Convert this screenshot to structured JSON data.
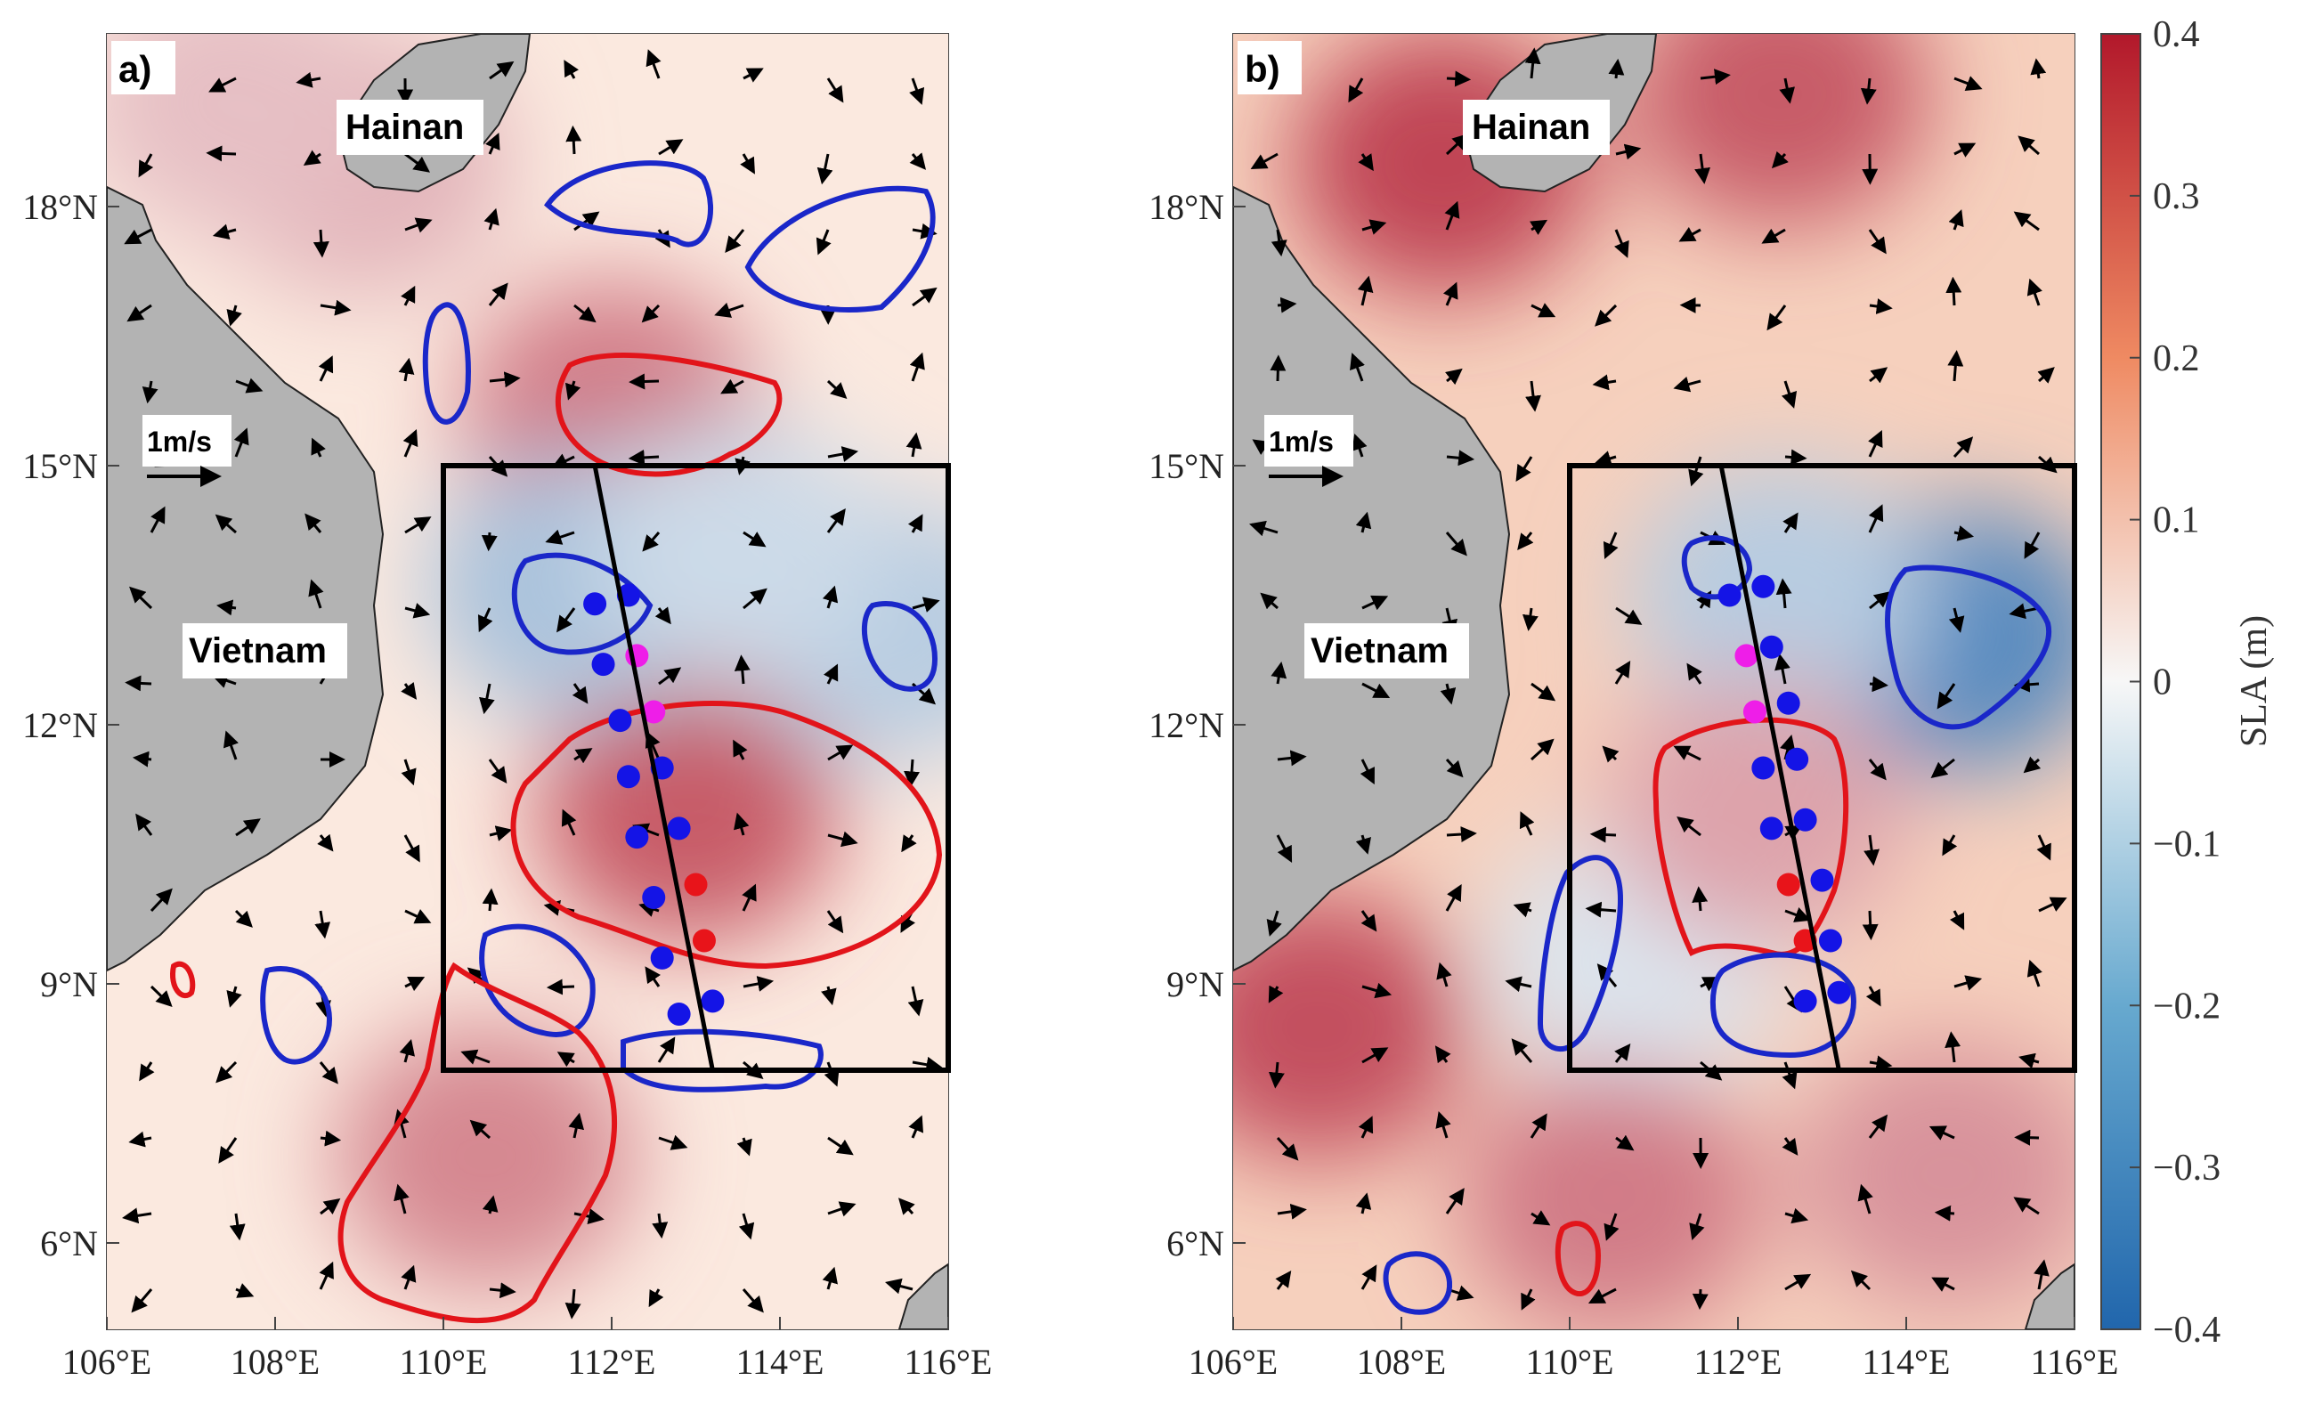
{
  "figure": {
    "colorbar": {
      "label": "SLA (m)",
      "min": -0.4,
      "max": 0.4,
      "ticks": [
        "0.4",
        "0.3",
        "0.2",
        "0.1",
        "0",
        "−0.1",
        "−0.2",
        "−0.3",
        "−0.4"
      ],
      "colors": {
        "positive": "#c0303a",
        "mid": "#f7f7f7",
        "negative": "#2b78b8"
      }
    },
    "axes": {
      "lon_ticks": [
        "106°E",
        "108°E",
        "110°E",
        "112°E",
        "114°E",
        "116°E"
      ],
      "lat_ticks": [
        "18°N",
        "15°N",
        "12°N",
        "9°N",
        "6°N"
      ],
      "lon_range": [
        106,
        116
      ],
      "lat_range": [
        5,
        20
      ]
    },
    "panels": [
      {
        "label": "a)",
        "land_labels": {
          "hainan": "Hainan",
          "vietnam": "Vietnam"
        },
        "scale_label": "1m/s",
        "study_box": {
          "lon": [
            110,
            116
          ],
          "lat": [
            8,
            15
          ]
        },
        "transect": {
          "lon": [
            111.8,
            113.2
          ],
          "lat": [
            15,
            8
          ]
        },
        "sla_features": [
          {
            "lon": 112.9,
            "lat": 11.0,
            "value": 0.28
          },
          {
            "lon": 112.0,
            "lat": 15.6,
            "value": 0.22
          },
          {
            "lon": 110.5,
            "lat": 7.0,
            "value": 0.2
          },
          {
            "lon": 111.6,
            "lat": 13.6,
            "value": -0.15
          },
          {
            "lon": 115.3,
            "lat": 13.1,
            "value": -0.12
          },
          {
            "lon": 113.5,
            "lat": 14.0,
            "value": -0.08
          },
          {
            "lon": 109.0,
            "lat": 18.5,
            "value": 0.12
          },
          {
            "lon": 107.5,
            "lat": 19.2,
            "value": 0.1
          }
        ],
        "stations": [
          {
            "lon": 111.8,
            "lat": 13.4,
            "type": "blue"
          },
          {
            "lon": 112.2,
            "lat": 13.5,
            "type": "blue"
          },
          {
            "lon": 111.9,
            "lat": 12.7,
            "type": "blue"
          },
          {
            "lon": 112.3,
            "lat": 12.8,
            "type": "magenta"
          },
          {
            "lon": 112.5,
            "lat": 12.15,
            "type": "magenta"
          },
          {
            "lon": 112.1,
            "lat": 12.05,
            "type": "blue"
          },
          {
            "lon": 112.2,
            "lat": 11.4,
            "type": "blue"
          },
          {
            "lon": 112.6,
            "lat": 11.5,
            "type": "blue"
          },
          {
            "lon": 112.3,
            "lat": 10.7,
            "type": "blue"
          },
          {
            "lon": 112.8,
            "lat": 10.8,
            "type": "blue"
          },
          {
            "lon": 112.5,
            "lat": 10.0,
            "type": "blue"
          },
          {
            "lon": 113.0,
            "lat": 10.15,
            "type": "red"
          },
          {
            "lon": 112.6,
            "lat": 9.3,
            "type": "blue"
          },
          {
            "lon": 113.1,
            "lat": 9.5,
            "type": "red"
          },
          {
            "lon": 112.8,
            "lat": 8.65,
            "type": "blue"
          },
          {
            "lon": 113.2,
            "lat": 8.8,
            "type": "blue"
          }
        ]
      },
      {
        "label": "b)",
        "land_labels": {
          "hainan": "Hainan",
          "vietnam": "Vietnam"
        },
        "scale_label": "1m/s",
        "study_box": {
          "lon": [
            110,
            116
          ],
          "lat": [
            8,
            15
          ]
        },
        "transect": {
          "lon": [
            111.8,
            113.2
          ],
          "lat": [
            15,
            8
          ]
        },
        "sla_features": [
          {
            "lon": 114.6,
            "lat": 13.0,
            "value": -0.3
          },
          {
            "lon": 112.5,
            "lat": 13.5,
            "value": -0.12
          },
          {
            "lon": 110.8,
            "lat": 9.3,
            "value": -0.05
          },
          {
            "lon": 112.2,
            "lat": 11.0,
            "value": 0.15
          },
          {
            "lon": 108.5,
            "lat": 18.5,
            "value": 0.32
          },
          {
            "lon": 107.0,
            "lat": 8.5,
            "value": 0.3
          },
          {
            "lon": 110.5,
            "lat": 6.5,
            "value": 0.22
          },
          {
            "lon": 114.5,
            "lat": 6.8,
            "value": 0.18
          },
          {
            "lon": 112.5,
            "lat": 19.3,
            "value": 0.28
          }
        ],
        "stations": [
          {
            "lon": 111.9,
            "lat": 13.5,
            "type": "blue"
          },
          {
            "lon": 112.3,
            "lat": 13.6,
            "type": "blue"
          },
          {
            "lon": 112.4,
            "lat": 12.9,
            "type": "blue"
          },
          {
            "lon": 112.1,
            "lat": 12.8,
            "type": "magenta"
          },
          {
            "lon": 112.2,
            "lat": 12.15,
            "type": "magenta"
          },
          {
            "lon": 112.6,
            "lat": 12.25,
            "type": "blue"
          },
          {
            "lon": 112.3,
            "lat": 11.5,
            "type": "blue"
          },
          {
            "lon": 112.7,
            "lat": 11.6,
            "type": "blue"
          },
          {
            "lon": 112.4,
            "lat": 10.8,
            "type": "blue"
          },
          {
            "lon": 112.8,
            "lat": 10.9,
            "type": "blue"
          },
          {
            "lon": 112.6,
            "lat": 10.15,
            "type": "red"
          },
          {
            "lon": 113.0,
            "lat": 10.2,
            "type": "blue"
          },
          {
            "lon": 112.8,
            "lat": 9.5,
            "type": "red"
          },
          {
            "lon": 113.1,
            "lat": 9.5,
            "type": "blue"
          },
          {
            "lon": 112.8,
            "lat": 8.8,
            "type": "blue"
          },
          {
            "lon": 113.2,
            "lat": 8.9,
            "type": "blue"
          }
        ]
      }
    ]
  }
}
